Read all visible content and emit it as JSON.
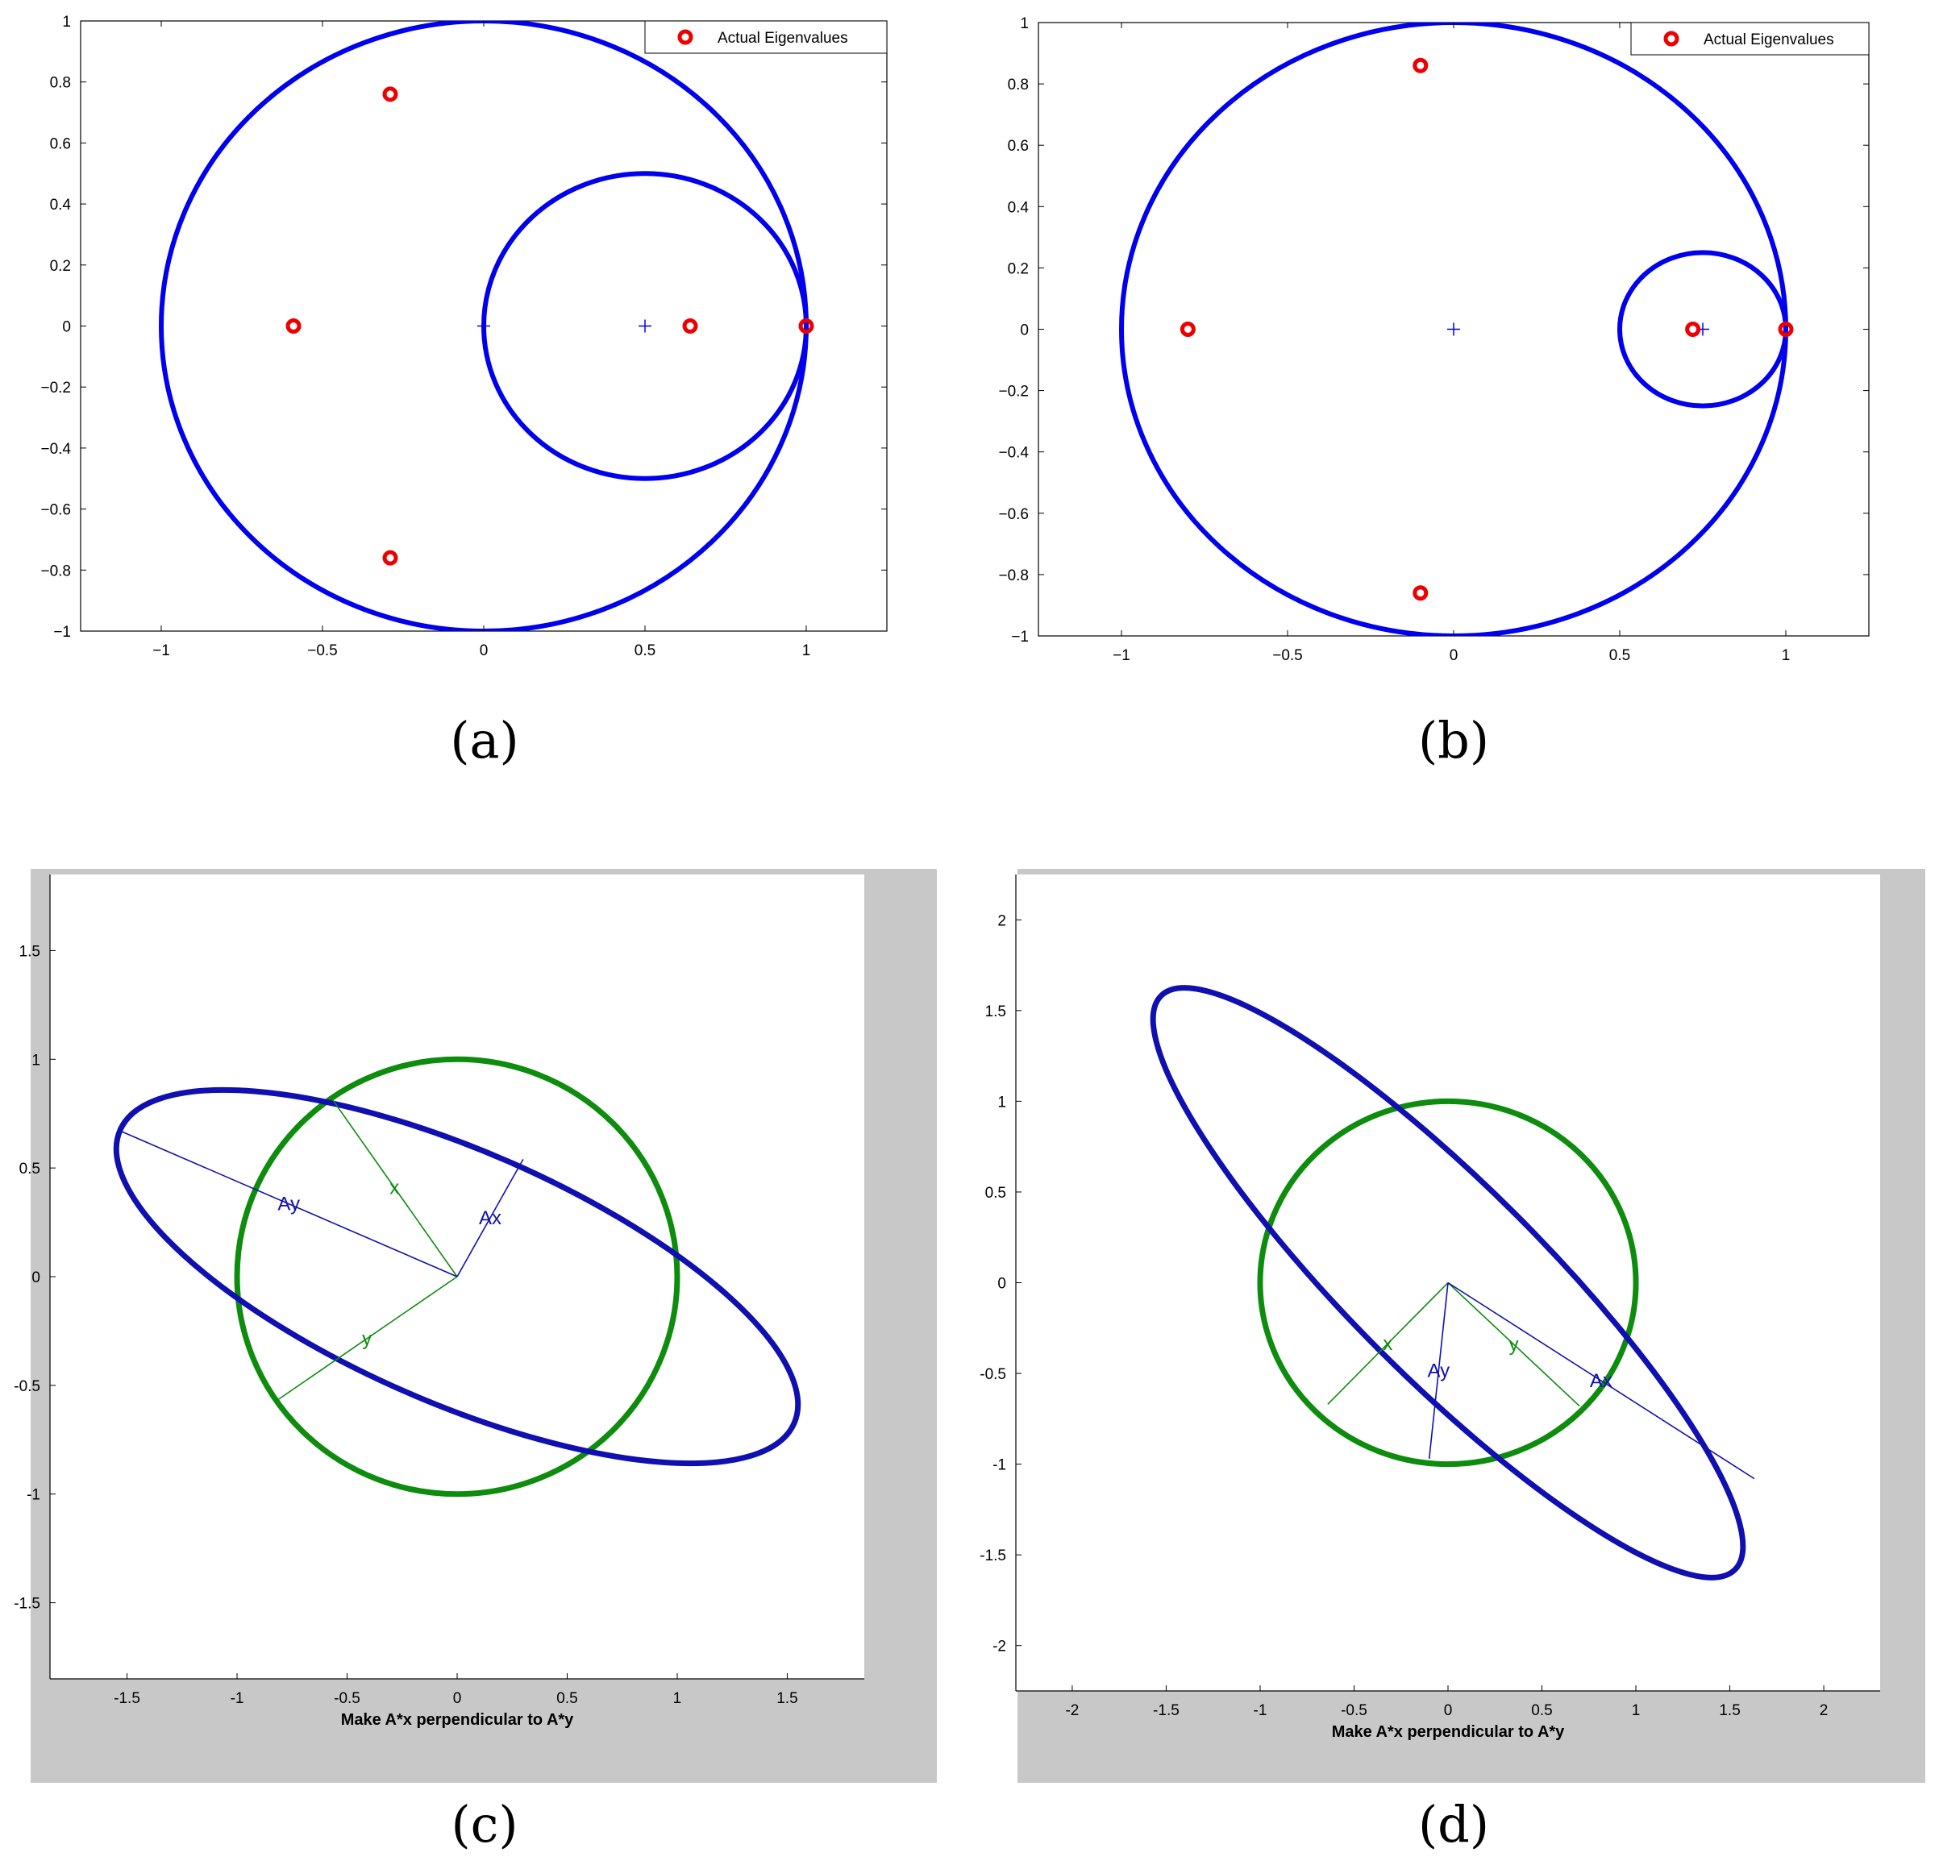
{
  "chart_data": [
    {
      "type": "scatter",
      "panel_label": "a",
      "xlim": [
        -1.25,
        1.25
      ],
      "ylim": [
        -1,
        1
      ],
      "xticks": [
        -1,
        -0.5,
        0,
        0.5,
        1
      ],
      "yticks": [
        -1,
        -0.8,
        -0.6,
        -0.4,
        -0.2,
        0,
        0.2,
        0.4,
        0.6,
        0.8,
        1
      ],
      "xtick_labels": [
        "−1",
        "−0.5",
        "0",
        "0.5",
        "1"
      ],
      "ytick_labels": [
        "−1",
        "−0.8",
        "−0.6",
        "−0.4",
        "−0.2",
        "0",
        "0.2",
        "0.4",
        "0.6",
        "0.8",
        "1"
      ],
      "legend": {
        "label": "Actual Eigenvalues",
        "position": "top-right"
      },
      "circles": [
        {
          "center": [
            0,
            0
          ],
          "radius": 1,
          "color": "#0000ee"
        },
        {
          "center": [
            0.5,
            0
          ],
          "radius": 0.5,
          "color": "#0000ee"
        }
      ],
      "center_markers": [
        [
          0,
          0
        ],
        [
          0.5,
          0
        ]
      ],
      "eigenvalues": {
        "name": "Actual Eigenvalues",
        "color": "#ee0000",
        "points": [
          [
            -0.59,
            0
          ],
          [
            -0.29,
            0.76
          ],
          [
            -0.29,
            -0.76
          ],
          [
            0.64,
            0
          ],
          [
            1,
            0
          ]
        ]
      },
      "grid": false
    },
    {
      "type": "scatter",
      "panel_label": "b",
      "xlim": [
        -1.25,
        1.25
      ],
      "ylim": [
        -1,
        1
      ],
      "xticks": [
        -1,
        -0.5,
        0,
        0.5,
        1
      ],
      "yticks": [
        -1,
        -0.8,
        -0.6,
        -0.4,
        -0.2,
        0,
        0.2,
        0.4,
        0.6,
        0.8,
        1
      ],
      "xtick_labels": [
        "−1",
        "−0.5",
        "0",
        "0.5",
        "1"
      ],
      "ytick_labels": [
        "−1",
        "−0.8",
        "−0.6",
        "−0.4",
        "−0.2",
        "0",
        "0.2",
        "0.4",
        "0.6",
        "0.8",
        "1"
      ],
      "legend": {
        "label": "Actual Eigenvalues",
        "position": "top-right"
      },
      "circles": [
        {
          "center": [
            0,
            0
          ],
          "radius": 1,
          "color": "#0000ee"
        },
        {
          "center": [
            0.75,
            0
          ],
          "radius": 0.25,
          "color": "#0000ee"
        }
      ],
      "center_markers": [
        [
          0,
          0
        ],
        [
          0.75,
          0
        ]
      ],
      "eigenvalues": {
        "name": "Actual Eigenvalues",
        "color": "#ee0000",
        "points": [
          [
            -0.8,
            0
          ],
          [
            -0.1,
            0.86
          ],
          [
            -0.1,
            -0.86
          ],
          [
            0.72,
            0
          ],
          [
            1,
            0
          ]
        ]
      },
      "grid": false
    },
    {
      "type": "line",
      "panel_label": "c",
      "xlabel": "Make A*x perpendicular to A*y",
      "xlim": [
        -1.85,
        1.85
      ],
      "ylim": [
        -1.85,
        1.85
      ],
      "xticks": [
        -1.5,
        -1,
        -0.5,
        0,
        0.5,
        1,
        1.5
      ],
      "yticks": [
        -1.5,
        -1,
        -0.5,
        0,
        0.5,
        1,
        1.5
      ],
      "xtick_labels": [
        "-1.5",
        "-1",
        "-0.5",
        "0",
        "0.5",
        "1",
        "1.5"
      ],
      "ytick_labels": [
        "-1.5",
        "-1",
        "-0.5",
        "0",
        "0.5",
        "1",
        "1.5"
      ],
      "unit_circle": {
        "center": [
          0,
          0
        ],
        "radius": 1,
        "color": "#0e8c0e"
      },
      "ellipse": {
        "semi_major": 1.67,
        "semi_minor": 0.58,
        "angle_deg": -23.5,
        "color": "#1010b0"
      },
      "vectors": [
        {
          "label": "x",
          "end": [
            -0.57,
            0.82
          ],
          "color": "#0e8c0e"
        },
        {
          "label": "y",
          "end": [
            -0.82,
            -0.57
          ],
          "color": "#0e8c0e"
        },
        {
          "label": "Ax",
          "end": [
            0.3,
            0.54
          ],
          "color": "#1010b0"
        },
        {
          "label": "Ay",
          "end": [
            -1.53,
            0.67
          ],
          "color": "#1010b0"
        }
      ],
      "grid": false
    },
    {
      "type": "line",
      "panel_label": "d",
      "xlabel": "Make A*x perpendicular to A*y",
      "xlim": [
        -2.3,
        2.3
      ],
      "ylim": [
        -2.25,
        2.25
      ],
      "xticks": [
        -2,
        -1.5,
        -1,
        -0.5,
        0,
        0.5,
        1,
        1.5,
        2
      ],
      "yticks": [
        -2,
        -1.5,
        -1,
        -0.5,
        0,
        0.5,
        1,
        1.5,
        2
      ],
      "xtick_labels": [
        "-2",
        "-1.5",
        "-1",
        "-0.5",
        "0",
        "0.5",
        "1",
        "1.5",
        "2"
      ],
      "ytick_labels": [
        "-2",
        "-1.5",
        "-1",
        "-0.5",
        "0",
        "0.5",
        "1",
        "1.5",
        "2"
      ],
      "unit_circle": {
        "center": [
          0,
          0
        ],
        "radius": 1,
        "color": "#0e8c0e"
      },
      "ellipse": {
        "semi_major": 2.16,
        "semi_minor": 0.53,
        "angle_deg": -45,
        "color": "#1010b0"
      },
      "vectors": [
        {
          "label": "x",
          "end": [
            -0.64,
            -0.67
          ],
          "color": "#0e8c0e"
        },
        {
          "label": "y",
          "end": [
            0.7,
            -0.68
          ],
          "color": "#0e8c0e"
        },
        {
          "label": "Ay",
          "end": [
            -0.1,
            -0.97
          ],
          "color": "#1010b0"
        },
        {
          "label": "Ax",
          "end": [
            1.63,
            -1.08
          ],
          "color": "#1010b0"
        }
      ],
      "grid": false
    }
  ],
  "panel_labels": [
    "(a)",
    "(b)",
    "(c)",
    "(d)"
  ]
}
